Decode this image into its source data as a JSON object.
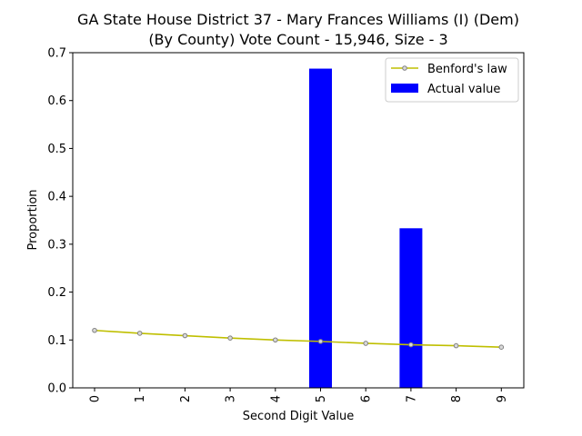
{
  "chart_data": {
    "type": "bar",
    "title_line1": "GA State House District 37 - Mary Frances Williams (I) (Dem)",
    "title_line2": "(By County) Vote Count - 15,946, Size - 3",
    "xlabel": "Second Digit Value",
    "ylabel": "Proportion",
    "categories": [
      "0",
      "1",
      "2",
      "3",
      "4",
      "5",
      "6",
      "7",
      "8",
      "9"
    ],
    "ylim": [
      0,
      0.7
    ],
    "yticks": [
      "0.0",
      "0.1",
      "0.2",
      "0.3",
      "0.4",
      "0.5",
      "0.6",
      "0.7"
    ],
    "legend_position": "top-right",
    "grid": false,
    "series": [
      {
        "name": "Benford's law",
        "kind": "line",
        "color": "#bfbf00",
        "values": [
          0.12,
          0.114,
          0.109,
          0.104,
          0.1,
          0.097,
          0.093,
          0.09,
          0.088,
          0.085
        ]
      },
      {
        "name": "Actual value",
        "kind": "bar",
        "color": "#0000ff",
        "values": [
          0,
          0,
          0,
          0,
          0,
          0.6667,
          0,
          0.3333,
          0,
          0
        ]
      }
    ]
  }
}
